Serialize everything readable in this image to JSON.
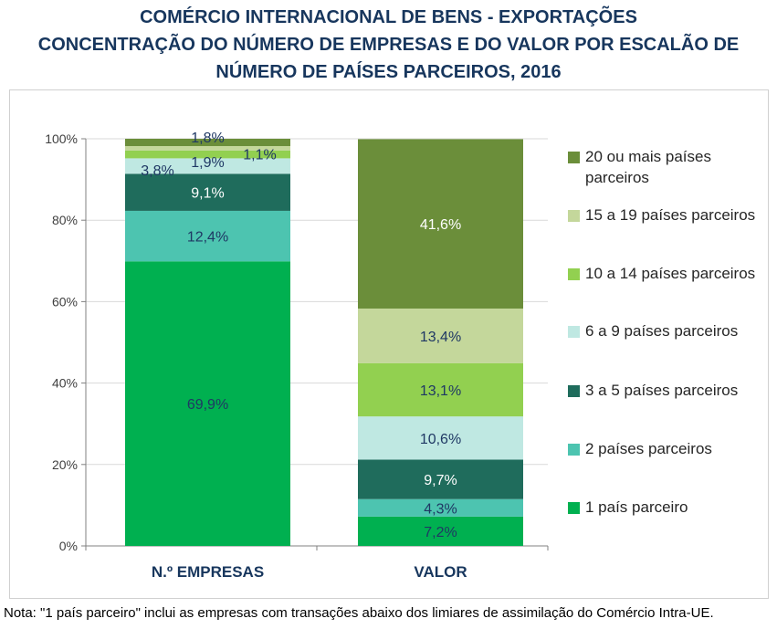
{
  "title_lines": [
    "COMÉRCIO INTERNACIONAL DE BENS - EXPORTAÇÕES",
    "CONCENTRAÇÃO DO NÚMERO DE EMPRESAS E DO VALOR POR ESCALÃO DE",
    "NÚMERO DE PAÍSES PARCEIROS, 2016"
  ],
  "note": "Nota: \"1 país parceiro\" inclui as empresas com transações abaixo dos limiares de assimilação do Comércio Intra-UE.",
  "chart_data": {
    "type": "bar",
    "stacked": true,
    "percent_stacked": true,
    "categories": [
      "N.º EMPRESAS",
      "VALOR"
    ],
    "yticks": [
      "0%",
      "20%",
      "40%",
      "60%",
      "80%",
      "100%"
    ],
    "ylim": [
      0,
      100
    ],
    "legend_position": "right",
    "series": [
      {
        "name": "1 país parceiro",
        "color": "#00b050",
        "values": [
          69.9,
          7.2
        ],
        "labels": [
          "69,9%",
          "7,2%"
        ],
        "label_colors": [
          "#1f3864",
          "#1f3864"
        ]
      },
      {
        "name": "2 países parceiros",
        "color": "#4dc4b0",
        "values": [
          12.4,
          4.3
        ],
        "labels": [
          "12,4%",
          "4,3%"
        ],
        "label_colors": [
          "#1f3864",
          "#1f3864"
        ]
      },
      {
        "name": "3 a 5 países parceiros",
        "color": "#1f6c5c",
        "values": [
          9.1,
          9.7
        ],
        "labels": [
          "9,1%",
          "9,7%"
        ],
        "label_colors": [
          "#ffffff",
          "#ffffff"
        ]
      },
      {
        "name": "6 a 9 países parceiros",
        "color": "#bfe8e2",
        "values": [
          3.8,
          10.6
        ],
        "labels": [
          "3,8%",
          "10,6%"
        ],
        "label_colors": [
          "#1f3864",
          "#1f3864"
        ]
      },
      {
        "name": "10 a 14 países parceiros",
        "color": "#92d050",
        "values": [
          1.9,
          13.1
        ],
        "labels": [
          "1,9%",
          "13,1%"
        ],
        "label_colors": [
          "#1f3864",
          "#1f3864"
        ]
      },
      {
        "name": "15 a 19 países parceiros",
        "color": "#c4d79b",
        "values": [
          1.1,
          13.4
        ],
        "labels": [
          "1,1%",
          "13,4%"
        ],
        "label_colors": [
          "#1f3864",
          "#1f3864"
        ]
      },
      {
        "name": "20 ou mais países parceiros",
        "color": "#6b8e3a",
        "values": [
          1.8,
          41.6
        ],
        "labels": [
          "1,8%",
          "41,6%"
        ],
        "label_colors": [
          "#1f3864",
          "#ffffff"
        ]
      }
    ]
  }
}
